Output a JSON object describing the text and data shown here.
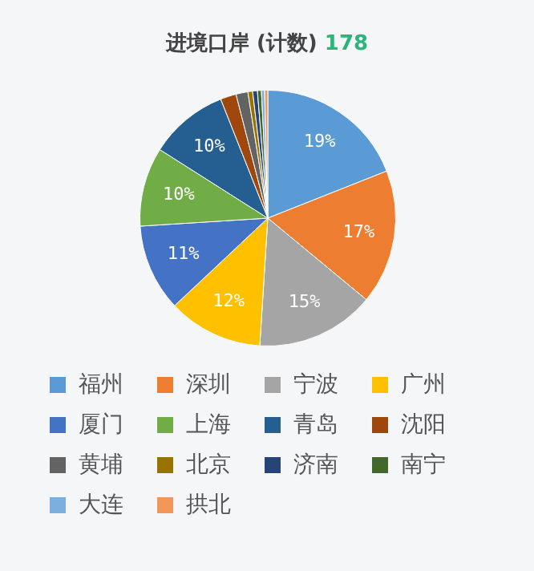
{
  "chart_data": {
    "type": "pie",
    "title": "进境口岸 (计数)",
    "subtitle": "178",
    "categories": [
      "福州",
      "深圳",
      "宁波",
      "广州",
      "厦门",
      "上海",
      "青岛",
      "沈阳",
      "黄埔",
      "北京",
      "济南",
      "南宁",
      "大连",
      "拱北"
    ],
    "values": [
      19,
      17,
      15,
      12,
      11,
      10,
      10,
      2,
      1.5,
      0.6,
      0.6,
      0.5,
      0.4,
      0.4
    ],
    "value_labels": [
      "19%",
      "17%",
      "15%",
      "12%",
      "11%",
      "10%",
      "10%",
      null,
      null,
      null,
      null,
      null,
      null,
      null
    ],
    "colors": [
      "#5b9bd5",
      "#ed7d31",
      "#a5a5a5",
      "#ffc000",
      "#4472c4",
      "#70ad47",
      "#255e91",
      "#9e480e",
      "#636363",
      "#997300",
      "#264478",
      "#43682b",
      "#7cafdd",
      "#f1975a"
    ],
    "legend": "bottom"
  }
}
